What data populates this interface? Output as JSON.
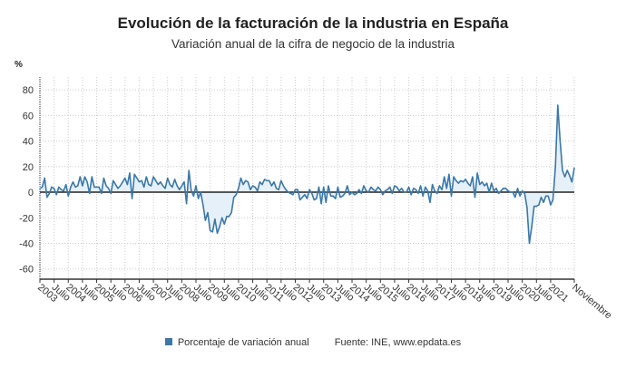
{
  "chart_data": {
    "type": "area",
    "title": "Evolución de la facturación de la industria en España",
    "subtitle": "Variación anual de la cifra de negocio de la industria",
    "ylabel": "%",
    "ylim": [
      -68,
      90
    ],
    "yticks": [
      80,
      60,
      40,
      20,
      0,
      -20,
      -40,
      -60
    ],
    "grid": true,
    "x_start": "2003-01",
    "x_end": "2021-11",
    "xtick_labels": [
      "2003",
      "Julio",
      "2004",
      "Julio",
      "2005",
      "Julio",
      "2006",
      "Julio",
      "2007",
      "Julio",
      "2008",
      "Julio",
      "2009",
      "Julio",
      "2010",
      "Julio",
      "2011",
      "Julio",
      "2012",
      "Julio",
      "2013",
      "Julio",
      "2014",
      "Julio",
      "2015",
      "Julio",
      "2016",
      "Julio",
      "2017",
      "Julio",
      "2018",
      "Julio",
      "2019",
      "Julio",
      "2020",
      "Julio",
      "2021",
      "Noviembre"
    ],
    "colors": {
      "line": "#3b78a6",
      "fill": "#e6f0f8",
      "zero": "#222222"
    },
    "series": [
      {
        "name": "Porcentaje de variación anual",
        "values": [
          3,
          4,
          11,
          -4,
          -1,
          4,
          3,
          -2,
          4,
          2,
          1,
          6,
          -3,
          4,
          8,
          4,
          5,
          12,
          5,
          12,
          8,
          -1,
          12,
          4,
          4,
          4,
          -1,
          11,
          5,
          3,
          -1,
          9,
          6,
          3,
          5,
          8,
          11,
          6,
          15,
          -5,
          14,
          11,
          8,
          9,
          4,
          12,
          6,
          5,
          12,
          9,
          6,
          8,
          5,
          3,
          11,
          6,
          4,
          10,
          5,
          2,
          5,
          8,
          -9,
          17,
          1,
          -3,
          5,
          -5,
          0,
          -10,
          -22,
          -16,
          -30,
          -31,
          -21,
          -32,
          -27,
          -20,
          -25,
          -19,
          -19,
          -16,
          -4,
          -2,
          3,
          11,
          6,
          9,
          8,
          2,
          5,
          4,
          1,
          8,
          6,
          10,
          9,
          9,
          5,
          8,
          3,
          2,
          9,
          5,
          2,
          0,
          -1,
          -2,
          2,
          2,
          -6,
          -4,
          -2,
          -5,
          2,
          -1,
          -6,
          -5,
          4,
          -9,
          4,
          -8,
          5,
          -3,
          -3,
          -5,
          4,
          -4,
          -3,
          -1,
          5,
          -2,
          0,
          -2,
          -1,
          2,
          -1,
          5,
          1,
          0,
          4,
          2,
          1,
          4,
          2,
          -2,
          1,
          2,
          4,
          -1,
          5,
          4,
          1,
          3,
          0,
          0,
          4,
          -2,
          3,
          2,
          -1,
          5,
          -3,
          4,
          1,
          -8,
          6,
          1,
          -1,
          5,
          2,
          12,
          3,
          14,
          -3,
          12,
          9,
          7,
          9,
          8,
          10,
          7,
          5,
          12,
          -4,
          15,
          6,
          8,
          5,
          7,
          0,
          7,
          1,
          3,
          -1,
          1,
          3,
          3,
          1,
          0,
          0,
          -4,
          3,
          -3,
          1,
          -1,
          -12,
          -40,
          -27,
          -11,
          -11,
          -10,
          -4,
          -8,
          -3,
          -3,
          -10,
          -6,
          20,
          68,
          40,
          17,
          12,
          17,
          13,
          8,
          19
        ]
      }
    ]
  },
  "legend": {
    "label": "Porcentaje de variación anual",
    "source": "Fuente: INE, www.epdata.es"
  }
}
